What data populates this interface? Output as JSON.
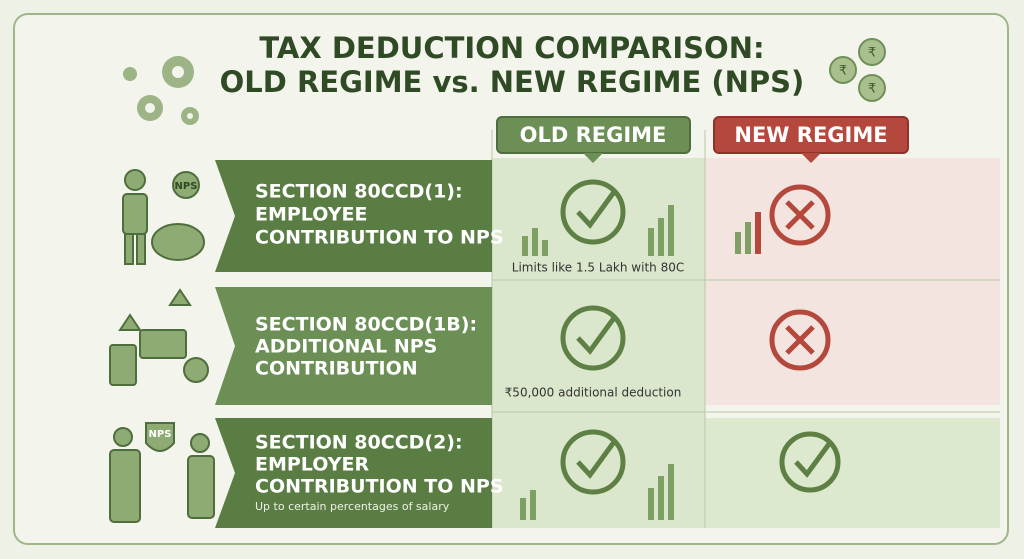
{
  "header": {
    "title_lines": [
      "TAX DEDUCTION COMPARISON:",
      "OLD REGIME vs. NEW REGIME (NPS)"
    ],
    "currency_symbol": "₹"
  },
  "columns": {
    "old": "OLD REGIME",
    "new": "NEW REGIME"
  },
  "rows": [
    {
      "label_lines": [
        "SECTION 80CCD(1):",
        "EMPLOYEE",
        "CONTRIBUTION TO NPS"
      ],
      "icon_label": "NPS",
      "old_note": "Limits like 1.5 Lakh with 80C"
    },
    {
      "label_lines": [
        "SECTION 80CCD(1B):",
        "ADDITIONAL NPS",
        "CONTRIBUTION"
      ],
      "old_note": "₹50,000 additional deduction"
    },
    {
      "label_lines": [
        "SECTION 80CCD(2):",
        "EMPLOYER",
        "CONTRIBUTION TO NPS"
      ],
      "icon_label": "NPS",
      "sub_note": "Up to certain percentages of salary"
    }
  ]
}
